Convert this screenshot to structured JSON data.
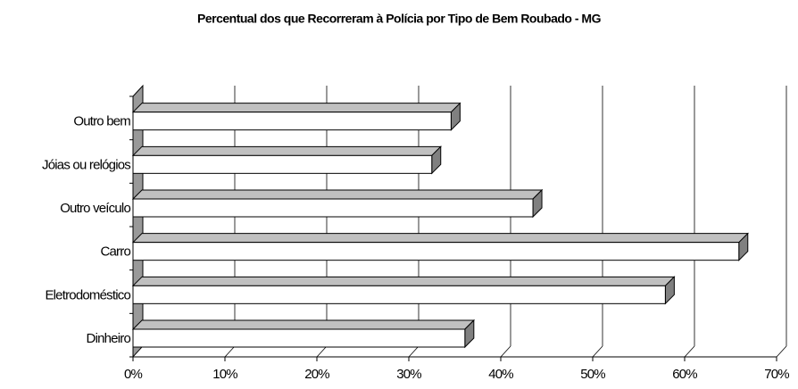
{
  "chart_data": {
    "type": "bar3d_horizontal",
    "title": "Percentual dos que Recorreram à Polícia por Tipo de Bem Roubado - MG",
    "categories": [
      "Dinheiro",
      "Eletrodoméstico",
      "Carro",
      "Outro veículo",
      "Jóias ou relógios",
      "Outro bem"
    ],
    "values": [
      36.1,
      57.9,
      65.9,
      43.5,
      32.5,
      34.6
    ],
    "color": "#ffffff",
    "xlim": [
      0,
      70
    ],
    "xticks": [
      {
        "value": 0,
        "label": "0%"
      },
      {
        "value": 10,
        "label": "10%"
      },
      {
        "value": 20,
        "label": "20%"
      },
      {
        "value": 30,
        "label": "30%"
      },
      {
        "value": 40,
        "label": "40%"
      },
      {
        "value": 50,
        "label": "50%"
      },
      {
        "value": 60,
        "label": "60%"
      },
      {
        "value": 70,
        "label": "70%"
      }
    ],
    "grid": true
  }
}
